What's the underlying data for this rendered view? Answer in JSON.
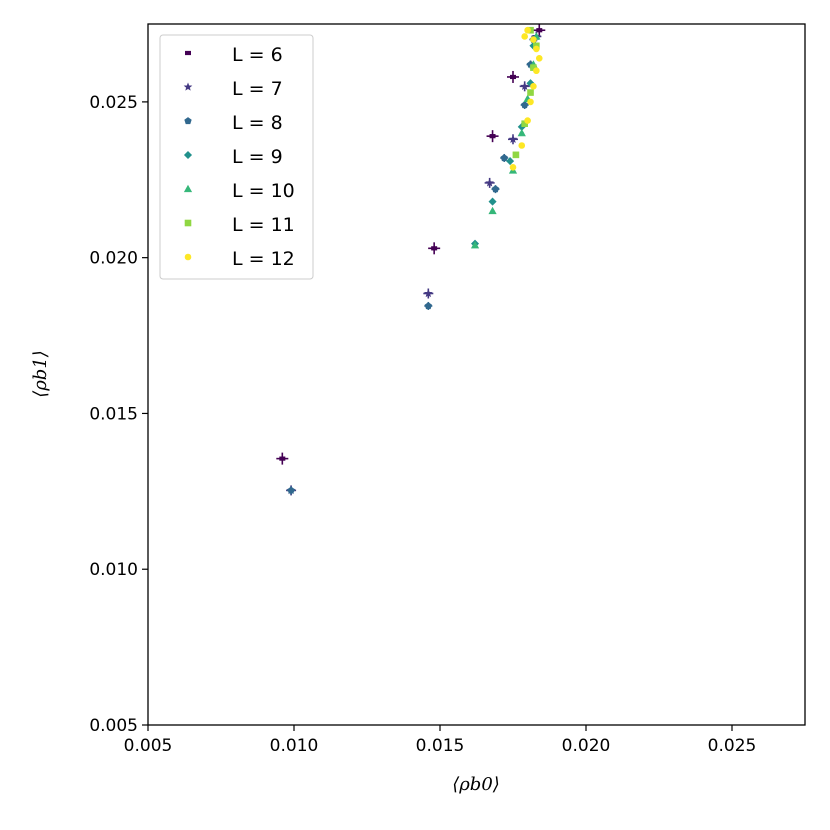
{
  "chart_data": {
    "type": "scatter",
    "xlabel": "⟨ρb0⟩",
    "ylabel": "⟨ρb1⟩",
    "xlim": [
      0.005,
      0.0275
    ],
    "ylim": [
      0.005,
      0.0275
    ],
    "xticks": [
      "0.005",
      "0.010",
      "0.015",
      "0.020",
      "0.025"
    ],
    "yticks": [
      "0.005",
      "0.010",
      "0.015",
      "0.020",
      "0.025"
    ],
    "legend_position": "top-left",
    "grid": false,
    "error_bars": true,
    "series": [
      {
        "name": "L = 6",
        "marker": "square-small",
        "color": "#440154",
        "points": [
          [
            0.0096,
            0.01355
          ],
          [
            0.0148,
            0.0203
          ],
          [
            0.0168,
            0.0239
          ],
          [
            0.0175,
            0.0258
          ],
          [
            0.0184,
            0.0273
          ]
        ]
      },
      {
        "name": "L = 7",
        "marker": "star",
        "color": "#443983",
        "points": [
          [
            0.0099,
            0.01253
          ],
          [
            0.0146,
            0.01885
          ],
          [
            0.0167,
            0.0224
          ],
          [
            0.0175,
            0.0238
          ],
          [
            0.0179,
            0.0255
          ],
          [
            0.0183,
            0.0271
          ]
        ]
      },
      {
        "name": "L = 8",
        "marker": "pentagon",
        "color": "#31688e",
        "points": [
          [
            0.0099,
            0.01253
          ],
          [
            0.0146,
            0.01845
          ],
          [
            0.0169,
            0.0222
          ],
          [
            0.0172,
            0.0232
          ],
          [
            0.0179,
            0.0249
          ],
          [
            0.0181,
            0.0262
          ],
          [
            0.0182,
            0.027
          ]
        ]
      },
      {
        "name": "L = 9",
        "marker": "diamond",
        "color": "#21918c",
        "points": [
          [
            0.0162,
            0.02045
          ],
          [
            0.0168,
            0.0218
          ],
          [
            0.0174,
            0.0231
          ],
          [
            0.0178,
            0.0242
          ],
          [
            0.0181,
            0.0256
          ],
          [
            0.0182,
            0.0268
          ]
        ]
      },
      {
        "name": "L = 10",
        "marker": "triangle",
        "color": "#35b779",
        "points": [
          [
            0.0162,
            0.0204
          ],
          [
            0.0168,
            0.0215
          ],
          [
            0.0175,
            0.0228
          ],
          [
            0.0178,
            0.024
          ],
          [
            0.018,
            0.0251
          ],
          [
            0.0182,
            0.0262
          ],
          [
            0.0183,
            0.0271
          ]
        ]
      },
      {
        "name": "L = 11",
        "marker": "square",
        "color": "#90d743",
        "points": [
          [
            0.0176,
            0.0233
          ],
          [
            0.0179,
            0.0243
          ],
          [
            0.0181,
            0.0253
          ],
          [
            0.0182,
            0.0261
          ],
          [
            0.0183,
            0.0268
          ],
          [
            0.0181,
            0.0273
          ]
        ]
      },
      {
        "name": "L = 12",
        "marker": "circle",
        "color": "#fde725",
        "points": [
          [
            0.0175,
            0.0229
          ],
          [
            0.0178,
            0.0236
          ],
          [
            0.018,
            0.0244
          ],
          [
            0.0181,
            0.025
          ],
          [
            0.0182,
            0.0255
          ],
          [
            0.0183,
            0.026
          ],
          [
            0.0184,
            0.0264
          ],
          [
            0.0183,
            0.0267
          ],
          [
            0.0182,
            0.027
          ],
          [
            0.018,
            0.0273
          ],
          [
            0.0179,
            0.0271
          ]
        ]
      }
    ]
  }
}
